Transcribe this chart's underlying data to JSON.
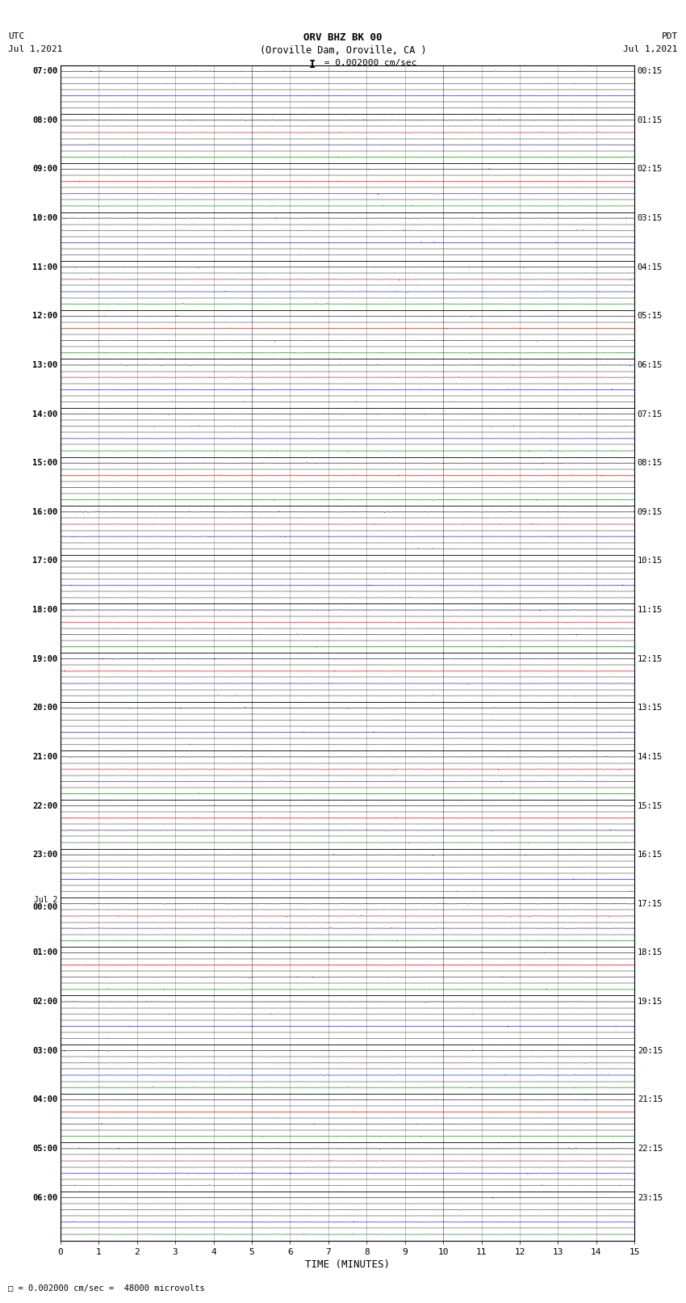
{
  "title_line1": "ORV BHZ BK 00",
  "title_line2": "(Oroville Dam, Oroville, CA )",
  "title_line3": "I = 0.002000 cm/sec",
  "bottom_label": "TIME (MINUTES)",
  "bottom_note": "□ = 0.002000 cm/sec =  48000 microvolts",
  "xlabel_ticks": [
    0,
    1,
    2,
    3,
    4,
    5,
    6,
    7,
    8,
    9,
    10,
    11,
    12,
    13,
    14,
    15
  ],
  "utc_labels": [
    "07:00",
    "08:00",
    "09:00",
    "10:00",
    "11:00",
    "12:00",
    "13:00",
    "14:00",
    "15:00",
    "16:00",
    "17:00",
    "18:00",
    "19:00",
    "20:00",
    "21:00",
    "22:00",
    "23:00",
    "Jul 2\n00:00",
    "01:00",
    "02:00",
    "03:00",
    "04:00",
    "05:00",
    "06:00"
  ],
  "pdt_labels": [
    "00:15",
    "01:15",
    "02:15",
    "03:15",
    "04:15",
    "05:15",
    "06:15",
    "07:15",
    "08:15",
    "09:15",
    "10:15",
    "11:15",
    "12:15",
    "13:15",
    "14:15",
    "15:15",
    "16:15",
    "17:15",
    "18:15",
    "19:15",
    "20:15",
    "21:15",
    "22:15",
    "23:15"
  ],
  "n_rows": 24,
  "traces_per_row": 4,
  "minutes": 15,
  "sample_rate": 40,
  "bg_color": "#ffffff",
  "trace_colors": [
    "#000000",
    "#cc0000",
    "#0000cc",
    "#007700"
  ],
  "grid_color": "#999999",
  "fig_width": 8.5,
  "fig_height": 16.13
}
